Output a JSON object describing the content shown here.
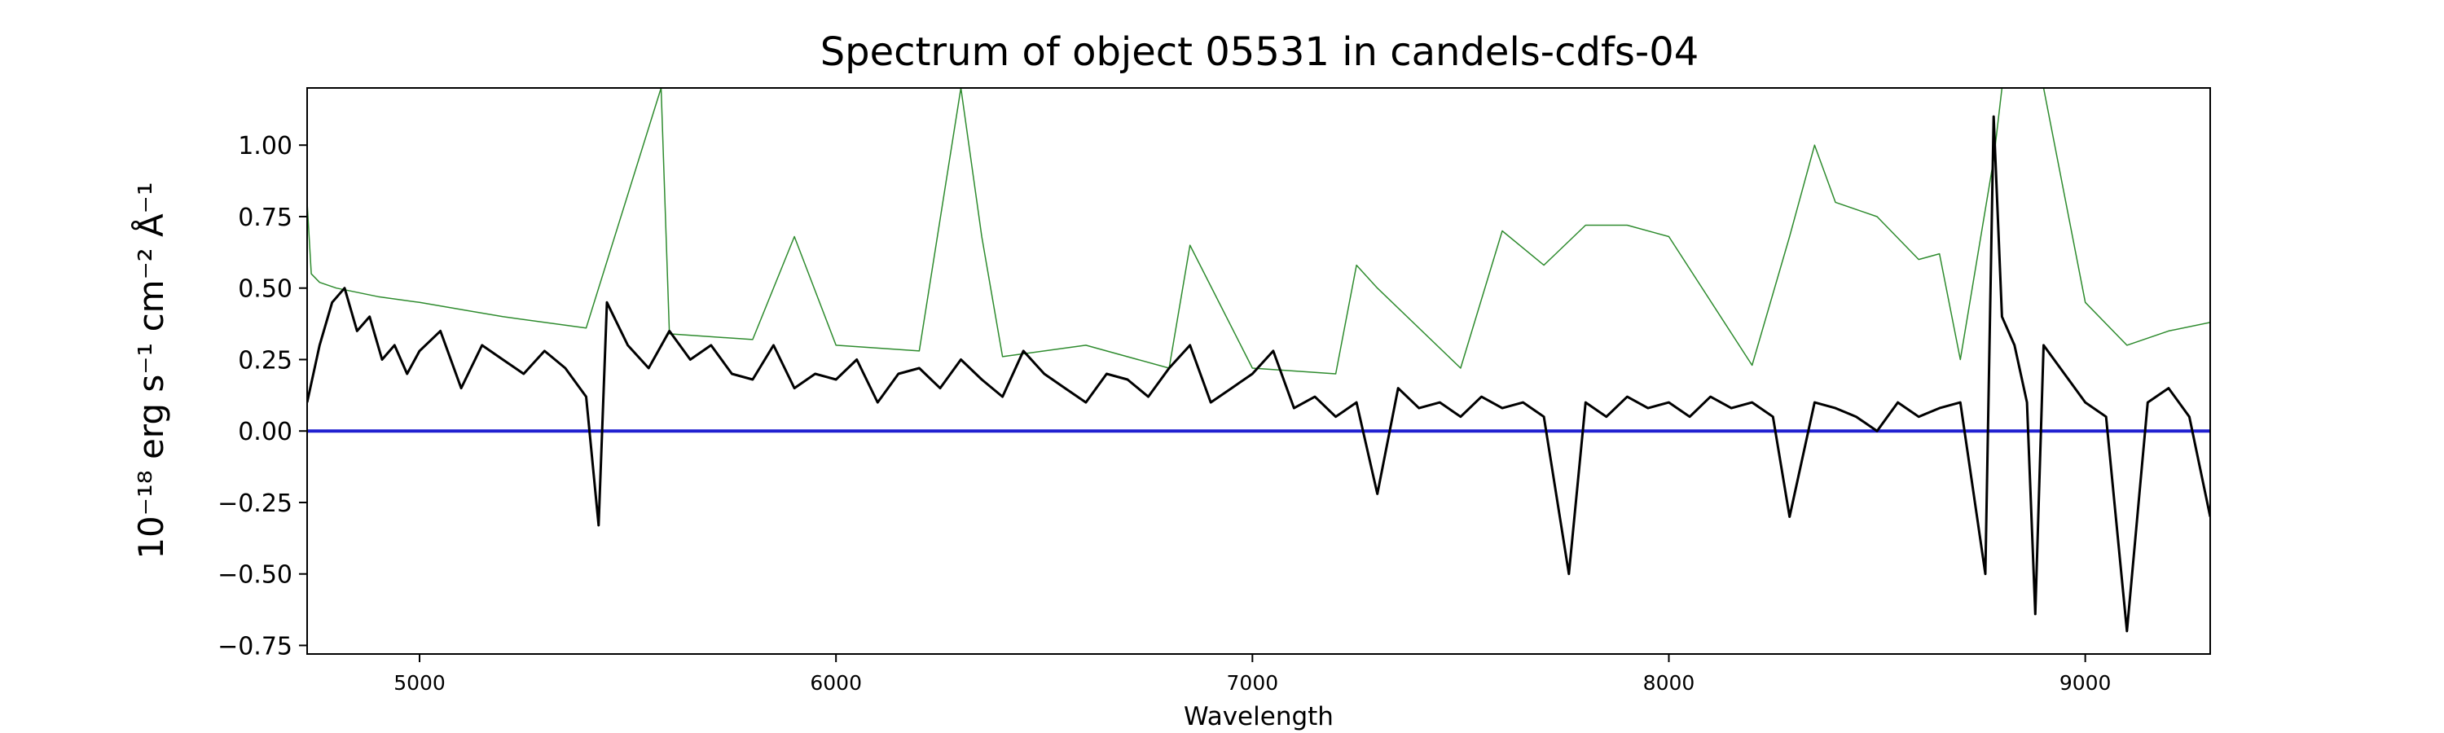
{
  "chart_data": {
    "type": "line",
    "title": "Spectrum of object 05531 in candels-cdfs-04",
    "xlabel": "Wavelength",
    "ylabel": "10⁻¹⁸ erg s⁻¹ cm⁻² Å⁻¹",
    "xlim": [
      4730,
      9300
    ],
    "ylim": [
      -0.78,
      1.2
    ],
    "x_ticks": [
      5000,
      6000,
      7000,
      8000,
      9000
    ],
    "y_ticks": [
      -0.75,
      -0.5,
      -0.25,
      0.0,
      0.25,
      0.5,
      0.75,
      1.0
    ],
    "x_tick_labels": [
      "5000",
      "6000",
      "7000",
      "8000",
      "9000"
    ],
    "y_tick_labels": [
      "−0.75",
      "−0.50",
      "−0.25",
      "0.00",
      "0.25",
      "0.50",
      "0.75",
      "1.00"
    ],
    "grid": false,
    "legend": "none",
    "series": [
      {
        "role": "flux",
        "color": "#000000",
        "x": [
          4730,
          4760,
          4790,
          4820,
          4850,
          4880,
          4910,
          4940,
          4970,
          5000,
          5050,
          5100,
          5150,
          5200,
          5250,
          5300,
          5350,
          5400,
          5430,
          5450,
          5500,
          5550,
          5600,
          5650,
          5700,
          5750,
          5800,
          5850,
          5900,
          5950,
          6000,
          6050,
          6100,
          6150,
          6200,
          6250,
          6300,
          6350,
          6400,
          6450,
          6500,
          6550,
          6600,
          6650,
          6700,
          6750,
          6800,
          6850,
          6900,
          6950,
          7000,
          7050,
          7100,
          7150,
          7200,
          7250,
          7300,
          7350,
          7400,
          7450,
          7500,
          7550,
          7600,
          7650,
          7700,
          7760,
          7800,
          7850,
          7900,
          7950,
          8000,
          8050,
          8100,
          8150,
          8200,
          8250,
          8290,
          8350,
          8400,
          8450,
          8500,
          8550,
          8600,
          8650,
          8700,
          8760,
          8780,
          8800,
          8830,
          8860,
          8880,
          8900,
          8950,
          9000,
          9050,
          9100,
          9150,
          9200,
          9250,
          9300
        ],
        "y": [
          0.1,
          0.3,
          0.45,
          0.5,
          0.35,
          0.4,
          0.25,
          0.3,
          0.2,
          0.28,
          0.35,
          0.15,
          0.3,
          0.25,
          0.2,
          0.28,
          0.22,
          0.12,
          -0.33,
          0.45,
          0.3,
          0.22,
          0.35,
          0.25,
          0.3,
          0.2,
          0.18,
          0.3,
          0.15,
          0.2,
          0.18,
          0.25,
          0.1,
          0.2,
          0.22,
          0.15,
          0.25,
          0.18,
          0.12,
          0.28,
          0.2,
          0.15,
          0.1,
          0.2,
          0.18,
          0.12,
          0.22,
          0.3,
          0.1,
          0.15,
          0.2,
          0.28,
          0.08,
          0.12,
          0.05,
          0.1,
          -0.22,
          0.15,
          0.08,
          0.1,
          0.05,
          0.12,
          0.08,
          0.1,
          0.05,
          -0.5,
          0.1,
          0.05,
          0.12,
          0.08,
          0.1,
          0.05,
          0.12,
          0.08,
          0.1,
          0.05,
          -0.3,
          0.1,
          0.08,
          0.05,
          0.0,
          0.1,
          0.05,
          0.08,
          0.1,
          -0.5,
          1.1,
          0.4,
          0.3,
          0.1,
          -0.64,
          0.3,
          0.2,
          0.1,
          0.05,
          -0.7,
          0.1,
          0.15,
          0.05,
          -0.3
        ]
      },
      {
        "role": "noise",
        "color": "#2e8b2e",
        "x": [
          4730,
          4740,
          4760,
          4800,
          4900,
          5000,
          5200,
          5400,
          5580,
          5600,
          5800,
          5900,
          6000,
          6200,
          6300,
          6350,
          6400,
          6600,
          6800,
          6850,
          7000,
          7200,
          7250,
          7300,
          7500,
          7600,
          7700,
          7800,
          7900,
          8000,
          8200,
          8290,
          8350,
          8400,
          8500,
          8600,
          8650,
          8700,
          8780,
          8800,
          8850,
          8900,
          9000,
          9100,
          9200,
          9300
        ],
        "y": [
          0.8,
          0.55,
          0.52,
          0.5,
          0.47,
          0.45,
          0.4,
          0.36,
          1.2,
          0.34,
          0.32,
          0.68,
          0.3,
          0.28,
          1.2,
          0.68,
          0.26,
          0.3,
          0.22,
          0.65,
          0.22,
          0.2,
          0.58,
          0.5,
          0.22,
          0.7,
          0.58,
          0.72,
          0.72,
          0.68,
          0.23,
          0.68,
          1.0,
          0.8,
          0.75,
          0.6,
          0.62,
          0.25,
          0.95,
          1.2,
          1.2,
          1.2,
          0.45,
          0.3,
          0.35,
          0.38
        ]
      },
      {
        "role": "zero",
        "color": "#1f1fd0",
        "x": [
          4730,
          9300
        ],
        "y": [
          0.0,
          0.0
        ]
      }
    ]
  }
}
